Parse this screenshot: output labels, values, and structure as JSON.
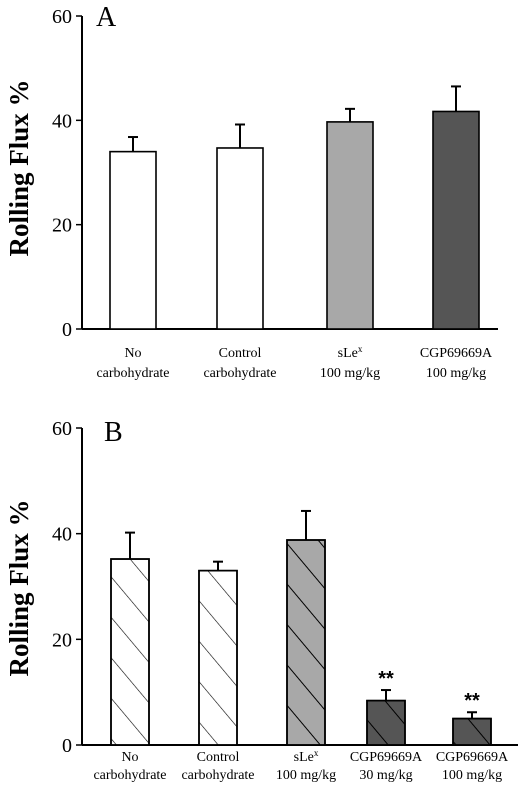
{
  "chart_data": [
    {
      "type": "bar",
      "panel": "A",
      "ylabel": "Rolling Flux %",
      "ylim": [
        0,
        60
      ],
      "yticks": [
        0,
        20,
        40,
        60
      ],
      "categories": [
        [
          "No",
          "carbohydrate"
        ],
        [
          "Control",
          "carbohydrate"
        ],
        [
          "sLe^x",
          "100 mg/kg"
        ],
        [
          "CGP69669A",
          "100 mg/kg"
        ]
      ],
      "values": [
        34,
        34.7,
        39.7,
        41.7
      ],
      "errors": [
        2.8,
        4.5,
        2.5,
        4.8
      ],
      "annotations": [
        "",
        "",
        "",
        ""
      ],
      "fills": [
        "#ffffff",
        "#ffffff",
        "#a8a8a8",
        "#555555"
      ],
      "hatched": [
        false,
        false,
        false,
        false
      ]
    },
    {
      "type": "bar",
      "panel": "B",
      "ylabel": "Rolling Flux %",
      "ylim": [
        0,
        60
      ],
      "yticks": [
        0,
        20,
        40,
        60
      ],
      "categories": [
        [
          "No",
          "carbohydrate"
        ],
        [
          "Control",
          "carbohydrate"
        ],
        [
          "sLe^x",
          "100 mg/kg"
        ],
        [
          "CGP69669A",
          "30 mg/kg"
        ],
        [
          "CGP69669A",
          "100 mg/kg"
        ]
      ],
      "values": [
        35.2,
        33,
        38.8,
        8.4,
        5
      ],
      "errors": [
        5,
        1.7,
        5.5,
        2,
        1.2
      ],
      "annotations": [
        "",
        "",
        "",
        "**",
        "**"
      ],
      "fills": [
        "#ffffff",
        "#ffffff",
        "#a8a8a8",
        "#555555",
        "#555555"
      ],
      "hatched": [
        true,
        true,
        true,
        true,
        true
      ]
    }
  ]
}
